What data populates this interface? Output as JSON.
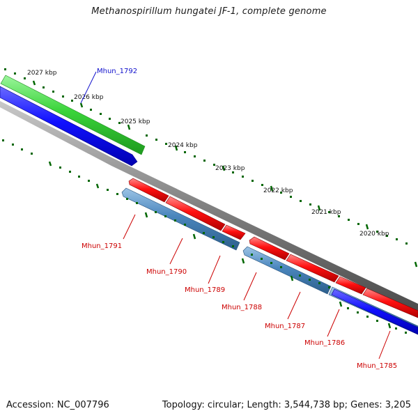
{
  "title": "Methanospirillum hungatei JF-1, complete genome",
  "footer": {
    "accession": "Accession: NC_007796",
    "summary": "Topology: circular; Length: 3,544,738 bp; Genes: 3,205"
  },
  "scale_labels": [
    "2027 kbp",
    "2026 kbp",
    "2025 kbp",
    "2024 kbp",
    "2023 kbp",
    "2022 kbp",
    "2021 kbp",
    "2020 kbp"
  ],
  "genes": {
    "forward": [
      "Mhun_1792"
    ],
    "reverse": [
      "Mhun_1791",
      "Mhun_1790",
      "Mhun_1789",
      "Mhun_1788",
      "Mhun_1787",
      "Mhun_1786",
      "Mhun_1785"
    ]
  },
  "colors": {
    "gene_label_forward": "#1010cc",
    "gene_label_reverse": "#cc0000",
    "cds": "#ff0000",
    "gene_forward": "#0000ff",
    "gene_reverse": "#4682b4",
    "gc_track": "#33cc33",
    "backbone": "#808080",
    "ticks": "#006600"
  }
}
